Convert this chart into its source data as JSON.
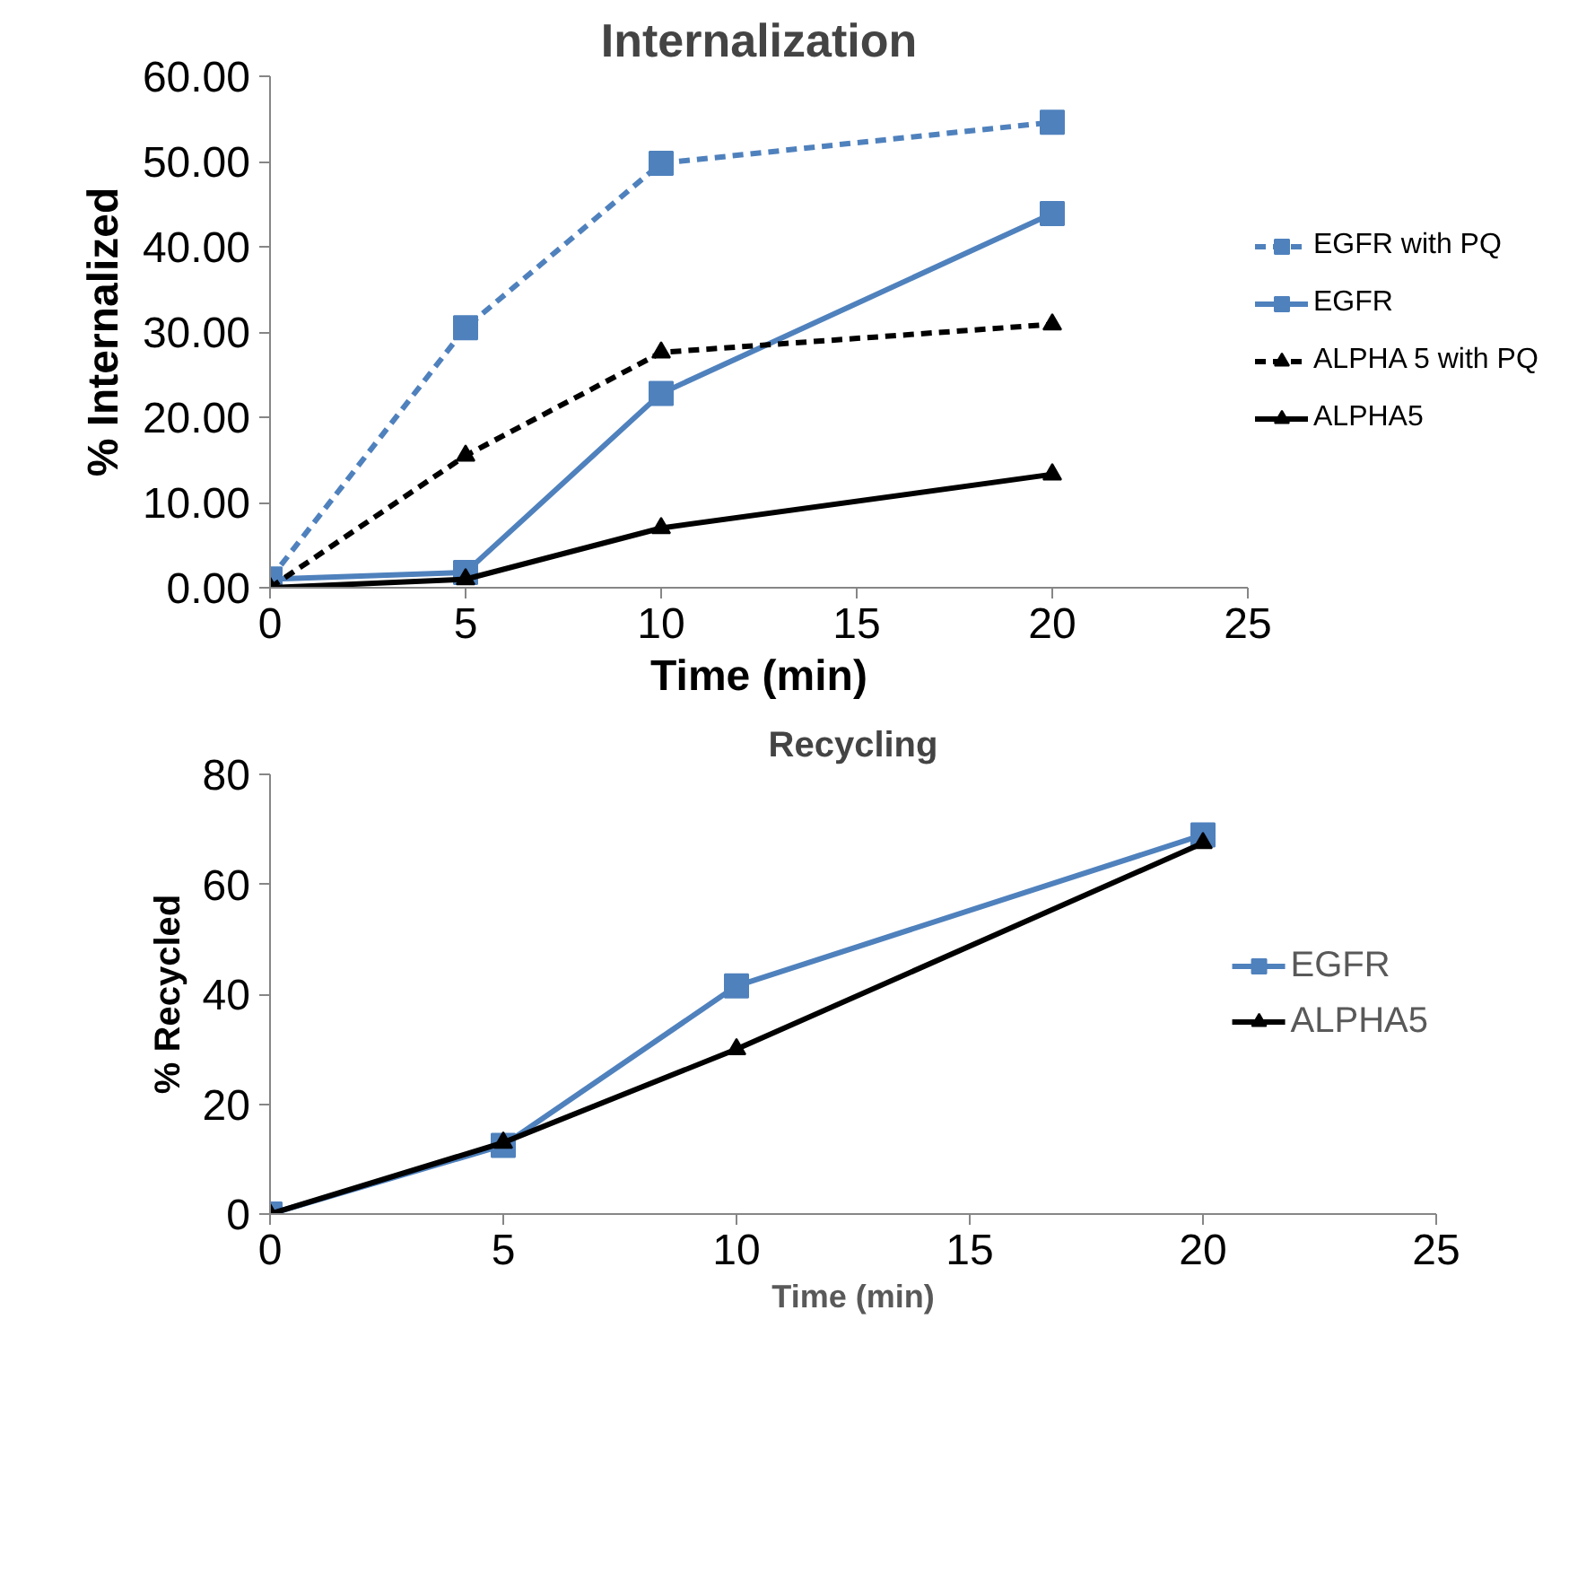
{
  "chart_data": [
    {
      "type": "line",
      "title": "Internalization",
      "xlabel": "Time (min)",
      "ylabel": "% Internalized",
      "x": [
        0,
        5,
        10,
        20
      ],
      "xlim": [
        0,
        25
      ],
      "xticks": [
        0,
        5,
        10,
        15,
        20,
        25
      ],
      "ylim": [
        0,
        60
      ],
      "yticks": [
        {
          "value": 0,
          "label": "0.00"
        },
        {
          "value": 10,
          "label": "10.00"
        },
        {
          "value": 20,
          "label": "20.00"
        },
        {
          "value": 30,
          "label": "30.00"
        },
        {
          "value": 40,
          "label": "40.00"
        },
        {
          "value": 50,
          "label": "50.00"
        },
        {
          "value": 60,
          "label": "60.00"
        }
      ],
      "grid": false,
      "legend": "right",
      "series": [
        {
          "name": "EGFR with PQ",
          "color": "#4f81bd",
          "marker": "square",
          "line_style": "dashed",
          "values": [
            1.0,
            30.5,
            49.8,
            54.6
          ]
        },
        {
          "name": "EGFR",
          "color": "#4f81bd",
          "marker": "square",
          "line_style": "solid",
          "values": [
            1.0,
            1.8,
            22.8,
            43.9
          ]
        },
        {
          "name": "ALPHA 5 with PQ",
          "color": "#000000",
          "marker": "triangle",
          "line_style": "dashed",
          "values": [
            0,
            15.5,
            27.6,
            30.9
          ]
        },
        {
          "name": "ALPHA5",
          "color": "#000000",
          "marker": "triangle",
          "line_style": "solid",
          "values": [
            0,
            1.0,
            7.0,
            13.3
          ]
        }
      ]
    },
    {
      "type": "line",
      "title": "Recycling",
      "xlabel": "Time (min)",
      "ylabel": "% Recycled",
      "x": [
        0,
        5,
        10,
        20
      ],
      "xlim": [
        0,
        25
      ],
      "xticks": [
        0,
        5,
        10,
        15,
        20,
        25
      ],
      "ylim": [
        0,
        80
      ],
      "yticks": [
        0,
        20,
        40,
        60,
        80
      ],
      "grid": false,
      "legend": "center right",
      "series": [
        {
          "name": "EGFR",
          "color": "#4f81bd",
          "marker": "square",
          "line_style": "solid",
          "values": [
            0,
            12.5,
            41.5,
            69.0
          ]
        },
        {
          "name": "ALPHA5",
          "color": "#000000",
          "marker": "triangle",
          "line_style": "solid",
          "values": [
            0,
            13.0,
            30.0,
            67.5
          ]
        }
      ]
    }
  ]
}
